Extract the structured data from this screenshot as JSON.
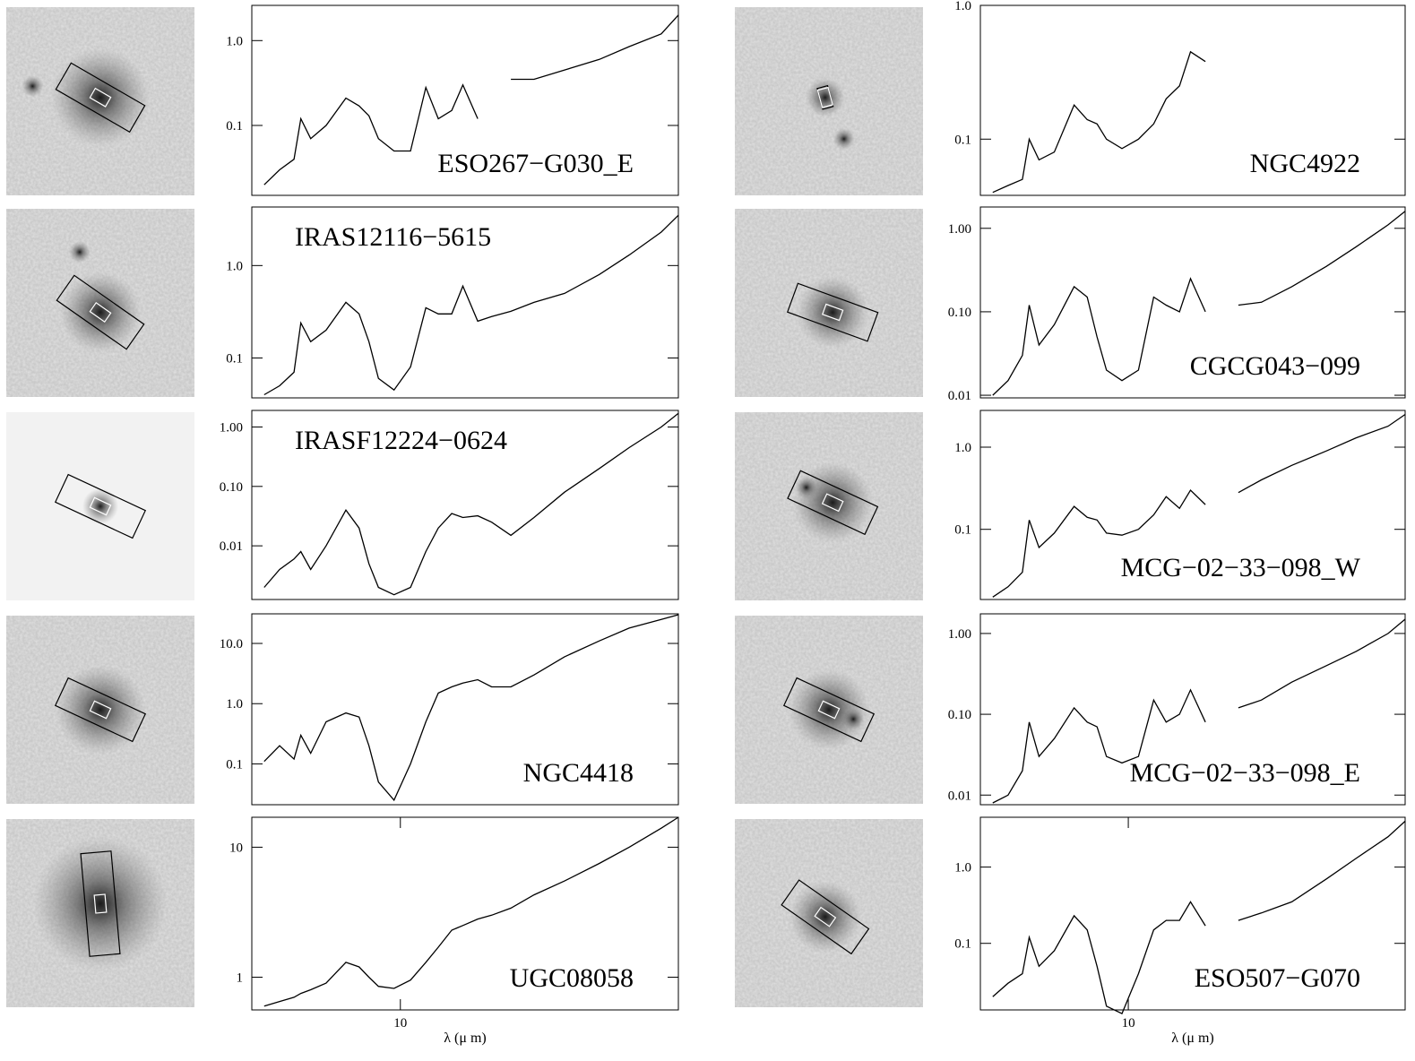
{
  "chart_data": [
    {
      "type": "line",
      "title": "ESO267−G030_E",
      "color": "#000000",
      "log_x": true,
      "log_y": true,
      "x": [
        5.2,
        5.6,
        6.0,
        6.2,
        6.5,
        7.0,
        7.7,
        8.2,
        8.6,
        9.0,
        9.7,
        10.5,
        11.3,
        12.0,
        12.8,
        13.5,
        14.5,
        15.5,
        17,
        19,
        22,
        26,
        30,
        35,
        38
      ],
      "values": [
        0.02,
        0.03,
        0.04,
        0.12,
        0.07,
        0.1,
        0.21,
        0.17,
        0.13,
        0.07,
        0.05,
        0.05,
        0.28,
        0.12,
        0.15,
        0.3,
        0.12,
        null,
        0.35,
        0.35,
        0.45,
        0.6,
        0.85,
        1.2,
        2.0
      ],
      "xlim": [
        4.9,
        38
      ],
      "ylim": [
        0.015,
        2.6
      ],
      "yticks": [
        0.1,
        {
          "value": 1,
          "label": "1.0"
        }
      ]
    },
    {
      "type": "line",
      "title": "IRAS12116−5615",
      "color": "#000000",
      "log_x": true,
      "log_y": true,
      "x": [
        5.2,
        5.6,
        6.0,
        6.2,
        6.5,
        7.0,
        7.7,
        8.2,
        8.6,
        9.0,
        9.7,
        10.5,
        11.3,
        12.0,
        12.8,
        13.5,
        14.5,
        15.5,
        17,
        19,
        22,
        26,
        30,
        35,
        38
      ],
      "values": [
        0.04,
        0.05,
        0.07,
        0.24,
        0.15,
        0.2,
        0.4,
        0.3,
        0.15,
        0.06,
        0.045,
        0.08,
        0.35,
        0.3,
        0.3,
        0.6,
        0.25,
        0.28,
        0.32,
        0.4,
        0.5,
        0.8,
        1.3,
        2.3,
        3.5
      ],
      "xlim": [
        4.9,
        38
      ],
      "ylim": [
        0.037,
        4.3
      ],
      "yticks": [
        0.1,
        {
          "value": 1,
          "label": "1.0"
        }
      ]
    },
    {
      "type": "line",
      "title": "IRASF12224−0624",
      "color": "#000000",
      "log_x": true,
      "log_y": true,
      "x": [
        5.2,
        5.6,
        6.0,
        6.2,
        6.5,
        7.0,
        7.7,
        8.2,
        8.6,
        9.0,
        9.7,
        10.5,
        11.3,
        12.0,
        12.8,
        13.5,
        14.5,
        15.5,
        17,
        19,
        22,
        26,
        30,
        35,
        38
      ],
      "values": [
        0.002,
        0.004,
        0.006,
        0.008,
        0.004,
        0.01,
        0.04,
        0.02,
        0.005,
        0.002,
        0.0015,
        0.002,
        0.008,
        0.02,
        0.035,
        0.03,
        0.032,
        0.025,
        0.015,
        0.03,
        0.08,
        0.2,
        0.45,
        1.0,
        1.7
      ],
      "xlim": [
        4.9,
        38
      ],
      "ylim": [
        0.00125,
        1.9
      ],
      "yticks": [
        0.01,
        {
          "value": 0.1,
          "label": "0.10"
        },
        {
          "value": 1,
          "label": "1.00"
        }
      ]
    },
    {
      "type": "line",
      "title": "NGC4418",
      "color": "#000000",
      "log_x": true,
      "log_y": true,
      "x": [
        5.2,
        5.6,
        6.0,
        6.2,
        6.5,
        7.0,
        7.7,
        8.2,
        8.6,
        9.0,
        9.7,
        10.5,
        11.3,
        12.0,
        12.8,
        13.5,
        14.5,
        15.5,
        17,
        19,
        22,
        26,
        30,
        35,
        38
      ],
      "values": [
        0.11,
        0.2,
        0.12,
        0.3,
        0.15,
        0.5,
        0.7,
        0.6,
        0.2,
        0.05,
        0.025,
        0.1,
        0.5,
        1.5,
        1.9,
        2.2,
        2.5,
        1.9,
        1.9,
        3,
        6,
        11,
        18,
        25,
        30
      ],
      "xlim": [
        4.9,
        38
      ],
      "ylim": [
        0.021,
        31
      ],
      "yticks": [
        0.1,
        {
          "value": 1,
          "label": "1.0"
        },
        {
          "value": 10,
          "label": "10.0"
        }
      ]
    },
    {
      "type": "line",
      "title": "UGC08058",
      "color": "#000000",
      "log_x": true,
      "log_y": true,
      "x": [
        5.2,
        5.6,
        6.0,
        6.2,
        6.5,
        7.0,
        7.7,
        8.2,
        8.6,
        9.0,
        9.7,
        10.5,
        11.3,
        12.0,
        12.8,
        13.5,
        14.5,
        15.5,
        17,
        19,
        22,
        26,
        30,
        35,
        38
      ],
      "values": [
        0.6,
        0.65,
        0.7,
        0.75,
        0.8,
        0.9,
        1.3,
        1.2,
        1.0,
        0.85,
        0.82,
        0.95,
        1.3,
        1.7,
        2.3,
        2.5,
        2.8,
        3.0,
        3.4,
        4.3,
        5.5,
        7.5,
        10,
        14,
        17
      ],
      "xlim": [
        4.9,
        38
      ],
      "ylim": [
        0.56,
        17
      ],
      "yticks": [
        1,
        10
      ],
      "xticks": [
        10
      ],
      "x_label": "λ (μ m)"
    },
    {
      "type": "line",
      "title": "NGC4922",
      "color": "#000000",
      "log_x": true,
      "log_y": true,
      "x": [
        5.2,
        5.6,
        6.0,
        6.2,
        6.5,
        7.0,
        7.7,
        8.2,
        8.6,
        9.0,
        9.7,
        10.5,
        11.3,
        12.0,
        12.8,
        13.5,
        14.5,
        15.5,
        17,
        19,
        22,
        26,
        30,
        35,
        38
      ],
      "values": [
        0.04,
        0.045,
        0.05,
        0.1,
        0.07,
        0.08,
        0.18,
        0.14,
        0.13,
        0.1,
        0.085,
        0.1,
        0.13,
        0.2,
        0.25,
        0.45,
        0.38,
        null,
        null,
        null,
        null,
        null,
        null,
        null,
        null
      ],
      "xlim": [
        4.9,
        38
      ],
      "ylim": [
        0.038,
        1
      ],
      "yticks": [
        0.1,
        {
          "value": 1,
          "label": "1.0"
        }
      ]
    },
    {
      "type": "line",
      "title": "CGCG043−099",
      "color": "#000000",
      "log_x": true,
      "log_y": true,
      "x": [
        5.2,
        5.6,
        6.0,
        6.2,
        6.5,
        7.0,
        7.7,
        8.2,
        8.6,
        9.0,
        9.7,
        10.5,
        11.3,
        12.0,
        12.8,
        13.5,
        14.5,
        15.5,
        17,
        19,
        22,
        26,
        30,
        35,
        38
      ],
      "values": [
        0.01,
        0.015,
        0.03,
        0.12,
        0.04,
        0.07,
        0.2,
        0.15,
        0.05,
        0.02,
        0.015,
        0.02,
        0.15,
        0.12,
        0.1,
        0.25,
        0.1,
        null,
        0.12,
        0.13,
        0.2,
        0.35,
        0.6,
        1.1,
        1.6
      ],
      "xlim": [
        4.9,
        38
      ],
      "ylim": [
        0.0093,
        1.8
      ],
      "yticks": [
        0.01,
        {
          "value": 0.1,
          "label": "0.10"
        },
        {
          "value": 1,
          "label": "1.00"
        }
      ]
    },
    {
      "type": "line",
      "title": "MCG−02−33−098_W",
      "color": "#000000",
      "log_x": true,
      "log_y": true,
      "x": [
        5.2,
        5.6,
        6.0,
        6.2,
        6.5,
        7.0,
        7.7,
        8.2,
        8.6,
        9.0,
        9.7,
        10.5,
        11.3,
        12.0,
        12.8,
        13.5,
        14.5,
        15.5,
        17,
        19,
        22,
        26,
        30,
        35,
        38
      ],
      "values": [
        0.015,
        0.02,
        0.03,
        0.13,
        0.06,
        0.09,
        0.19,
        0.14,
        0.13,
        0.09,
        0.085,
        0.1,
        0.15,
        0.25,
        0.18,
        0.3,
        0.2,
        null,
        0.28,
        0.4,
        0.6,
        0.9,
        1.3,
        1.8,
        2.5
      ],
      "xlim": [
        4.9,
        38
      ],
      "ylim": [
        0.014,
        2.8
      ],
      "yticks": [
        0.1,
        {
          "value": 1,
          "label": "1.0"
        }
      ]
    },
    {
      "type": "line",
      "title": "MCG−02−33−098_E",
      "color": "#000000",
      "log_x": true,
      "log_y": true,
      "x": [
        5.2,
        5.6,
        6.0,
        6.2,
        6.5,
        7.0,
        7.7,
        8.2,
        8.6,
        9.0,
        9.7,
        10.5,
        11.3,
        12.0,
        12.8,
        13.5,
        14.5,
        15.5,
        17,
        19,
        22,
        26,
        30,
        35,
        38
      ],
      "values": [
        0.008,
        0.01,
        0.02,
        0.08,
        0.03,
        0.05,
        0.12,
        0.08,
        0.07,
        0.03,
        0.025,
        0.03,
        0.15,
        0.08,
        0.1,
        0.2,
        0.08,
        null,
        0.12,
        0.15,
        0.25,
        0.4,
        0.6,
        1.0,
        1.5
      ],
      "xlim": [
        4.9,
        38
      ],
      "ylim": [
        0.0076,
        1.75
      ],
      "yticks": [
        0.01,
        {
          "value": 0.1,
          "label": "0.10"
        },
        {
          "value": 1,
          "label": "1.00"
        }
      ]
    },
    {
      "type": "line",
      "title": "ESO507−G070",
      "color": "#000000",
      "log_x": true,
      "log_y": true,
      "x": [
        5.2,
        5.6,
        6.0,
        6.2,
        6.5,
        7.0,
        7.7,
        8.2,
        8.6,
        9.0,
        9.7,
        10.5,
        11.3,
        12.0,
        12.8,
        13.5,
        14.5,
        15.5,
        17,
        19,
        22,
        26,
        30,
        35,
        38
      ],
      "values": [
        0.02,
        0.03,
        0.04,
        0.12,
        0.05,
        0.08,
        0.23,
        0.15,
        0.05,
        0.015,
        0.012,
        0.04,
        0.15,
        0.2,
        0.2,
        0.35,
        0.17,
        null,
        0.2,
        0.25,
        0.35,
        0.7,
        1.3,
        2.5,
        4
      ],
      "xlim": [
        4.9,
        38
      ],
      "ylim": [
        0.0134,
        4.5
      ],
      "yticks": [
        0.1,
        {
          "value": 1,
          "label": "1.0"
        }
      ],
      "xticks": [
        10
      ],
      "x_label": "λ (μ m)"
    }
  ]
}
